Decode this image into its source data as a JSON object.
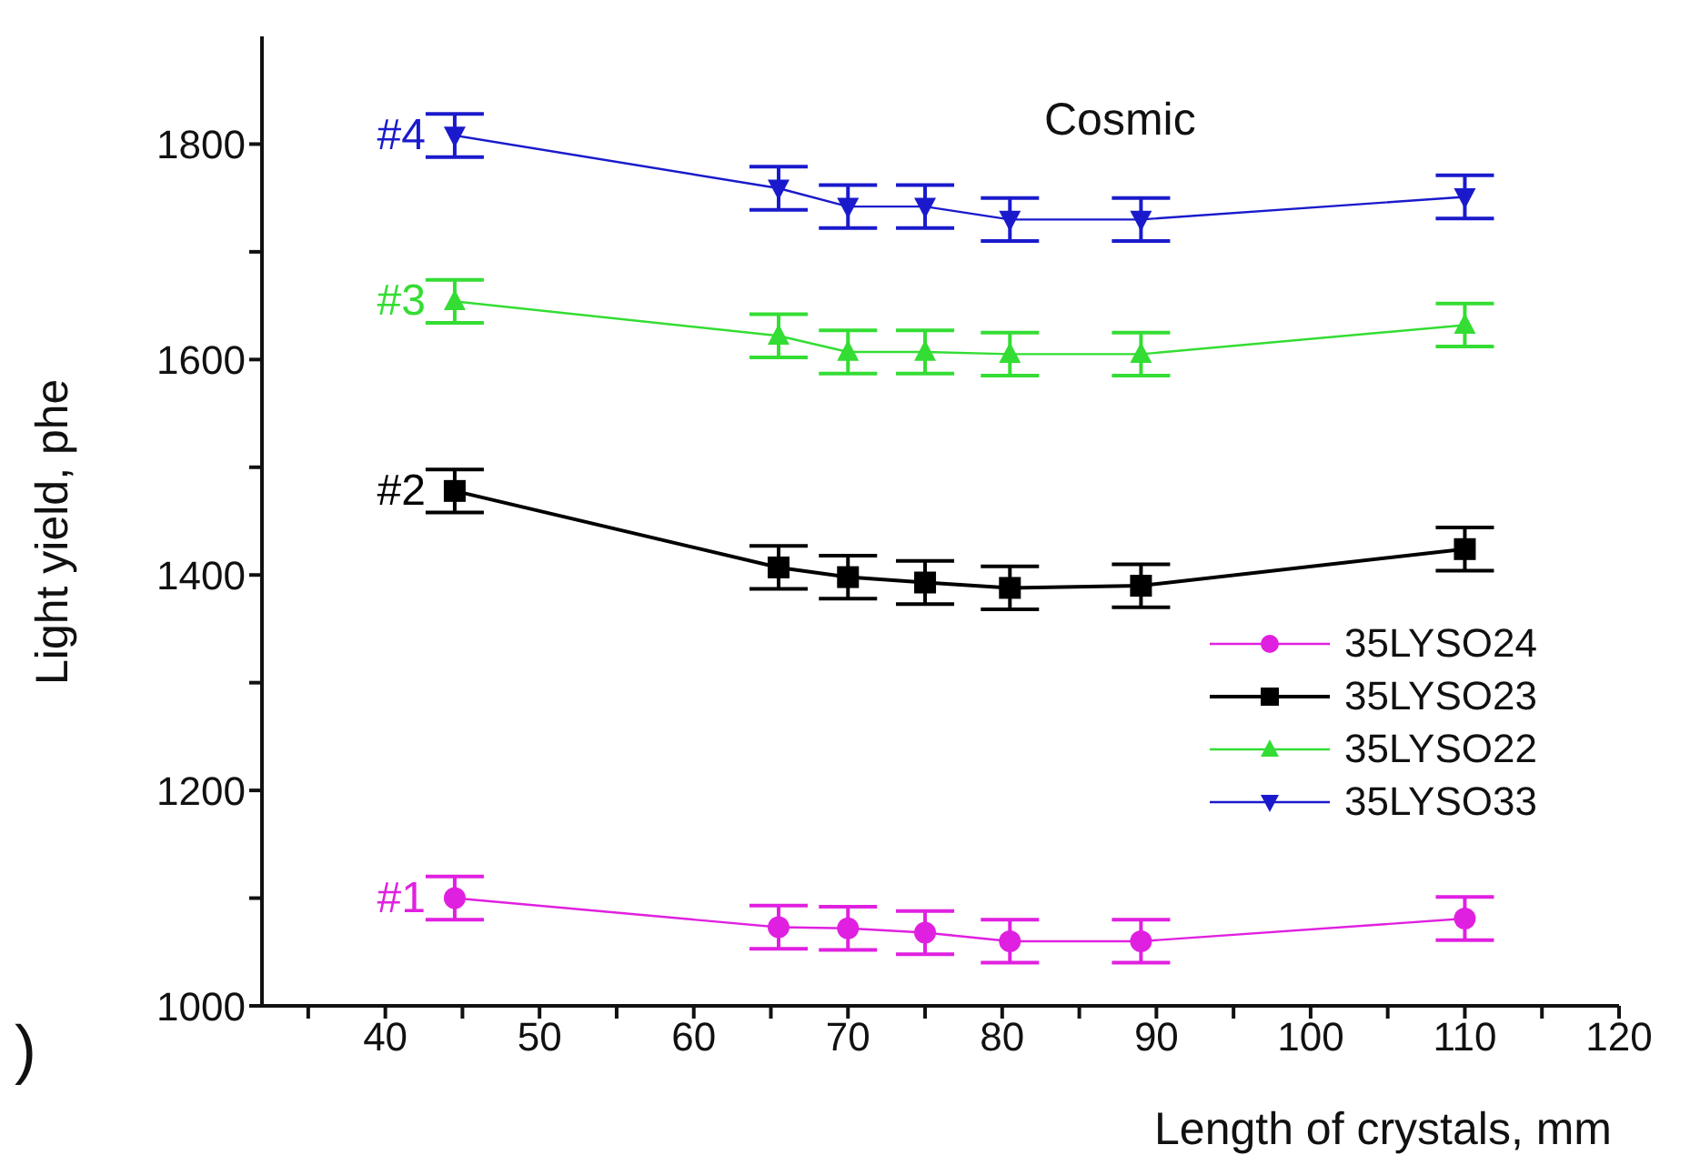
{
  "chart_data": {
    "type": "line",
    "xlabel": "Length of crystals, mm",
    "ylabel": "Light yield, phe",
    "x": [
      44.5,
      65.5,
      70,
      75,
      80.5,
      89,
      110
    ],
    "series": [
      {
        "name": "35LYSO24",
        "color": "#e020e0",
        "marker": "circle",
        "values": [
          1100,
          1073,
          1072,
          1068,
          1060,
          1060,
          1081
        ],
        "errors": [
          20,
          20,
          20,
          20,
          20,
          20,
          20
        ]
      },
      {
        "name": "35LYSO23",
        "color": "#000000",
        "marker": "square",
        "values": [
          1478,
          1407,
          1398,
          1393,
          1388,
          1390,
          1424
        ],
        "errors": [
          20,
          20,
          20,
          20,
          20,
          20,
          20
        ]
      },
      {
        "name": "35LYSO22",
        "color": "#33dd33",
        "marker": "triangle",
        "values": [
          1654,
          1622,
          1607,
          1607,
          1605,
          1605,
          1632
        ],
        "errors": [
          20,
          20,
          20,
          20,
          20,
          20,
          20
        ]
      },
      {
        "name": "35LYSO33",
        "color": "#1a1acc",
        "marker": "triangle-down",
        "values": [
          1808,
          1759,
          1742,
          1742,
          1730,
          1730,
          1751
        ],
        "errors": [
          20,
          20,
          20,
          20,
          20,
          20,
          20
        ]
      }
    ],
    "xlim": [
      32,
      120
    ],
    "xticks": [
      {
        "value": 35,
        "label": null
      },
      40,
      {
        "value": 45,
        "label": null
      },
      50,
      {
        "value": 55,
        "label": null
      },
      60,
      {
        "value": 65,
        "label": null
      },
      70,
      {
        "value": 75,
        "label": null
      },
      80,
      {
        "value": 85,
        "label": null
      },
      90,
      {
        "value": 95,
        "label": null
      },
      100,
      {
        "value": 105,
        "label": null
      },
      110,
      {
        "value": 115,
        "label": null
      },
      120
    ],
    "ylim": [
      1000,
      1900
    ],
    "yticks": [
      1000,
      {
        "value": 1100,
        "label": null
      },
      1200,
      {
        "value": 1300,
        "label": null
      },
      1400,
      {
        "value": 1500,
        "label": null
      },
      1600,
      {
        "value": 1700,
        "label": null
      },
      1800
    ],
    "annotations": [
      "Cosmic",
      ")",
      "#1",
      "#2",
      "#3",
      "#4"
    ],
    "legend": "right",
    "grid": false,
    "line_style": "solid"
  }
}
